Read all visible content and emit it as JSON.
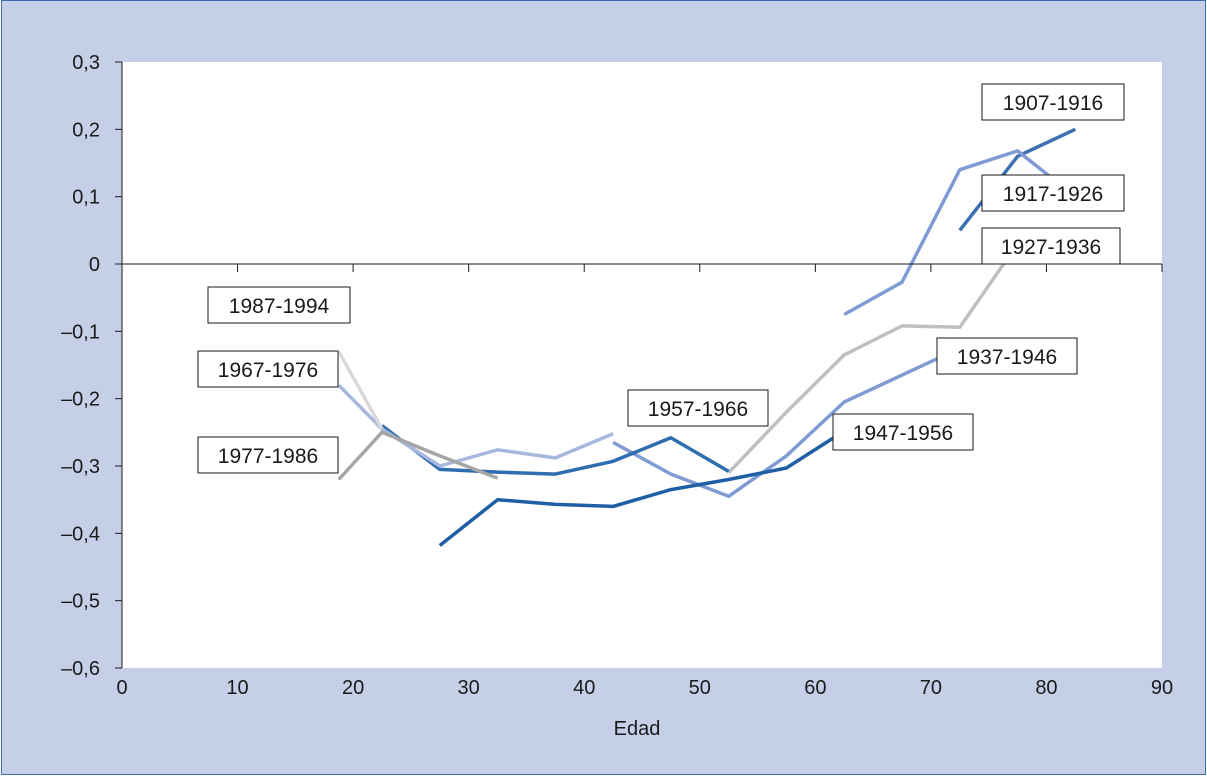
{
  "chart_data": {
    "type": "line",
    "title": "",
    "xlabel": "Edad",
    "ylabel": "",
    "xlim": [
      0,
      90
    ],
    "ylim": [
      -0.6,
      0.3
    ],
    "x_ticks": [
      0,
      10,
      20,
      30,
      40,
      50,
      60,
      70,
      80,
      90
    ],
    "x_tick_labels": [
      "0",
      "10",
      "20",
      "30",
      "40",
      "50",
      "60",
      "70",
      "80",
      "90"
    ],
    "y_ticks": [
      0.3,
      0.2,
      0.1,
      0,
      -0.1,
      -0.2,
      -0.3,
      -0.4,
      -0.5,
      -0.6
    ],
    "y_tick_labels": [
      "0,3",
      "0,2",
      "0,1",
      "0",
      "–0,1",
      "–0,2",
      "–0,3",
      "–0,4",
      "–0,5",
      "–0,6"
    ],
    "grid": false,
    "series": [
      {
        "name": "1907-1916",
        "color": "#3a6fb0",
        "x": [
          72.5,
          77.5,
          82.5
        ],
        "y": [
          0.05,
          0.16,
          0.2
        ]
      },
      {
        "name": "1917-1926",
        "color": "#7f9bd3",
        "x": [
          62.5,
          67.5,
          72.5,
          77.5,
          82.5
        ],
        "y": [
          -0.075,
          -0.027,
          0.14,
          0.168,
          0.1
        ]
      },
      {
        "name": "1927-1936",
        "color": "#bfbfbf",
        "x": [
          52.5,
          57.5,
          62.5,
          67.5,
          72.5,
          77.5,
          82.5
        ],
        "y": [
          -0.31,
          -0.22,
          -0.135,
          -0.092,
          -0.094,
          0.03,
          0.052
        ]
      },
      {
        "name": "1937-1946",
        "color": "#7f9bd3",
        "x": [
          42.5,
          47.5,
          52.5,
          57.5,
          62.5,
          67.5,
          72.5
        ],
        "y": [
          -0.265,
          -0.312,
          -0.345,
          -0.285,
          -0.205,
          -0.165,
          -0.125
        ]
      },
      {
        "name": "1947-1956",
        "color": "#1f5fa6",
        "x": [
          27.5,
          32.5,
          37.5,
          42.5,
          47.5,
          52.5,
          57.5,
          62.5
        ],
        "y": [
          -0.418,
          -0.35,
          -0.357,
          -0.36,
          -0.335,
          -0.32,
          -0.303,
          -0.248
        ]
      },
      {
        "name": "1957-1966",
        "color": "#2e6db0",
        "x": [
          22.5,
          27.5,
          32.5,
          37.5,
          42.5,
          47.5,
          52.5
        ],
        "y": [
          -0.24,
          -0.305,
          -0.309,
          -0.312,
          -0.293,
          -0.258,
          -0.308
        ]
      },
      {
        "name": "1967-1976",
        "color": "#a6b8de",
        "x": [
          18.75,
          22.5,
          27.5,
          32.5,
          37.5,
          42.5
        ],
        "y": [
          -0.18,
          -0.245,
          -0.3,
          -0.276,
          -0.288,
          -0.252
        ]
      },
      {
        "name": "1977-1986",
        "color": "#a6a6a6",
        "x": [
          18.75,
          22.5,
          27.5,
          32.5
        ],
        "y": [
          -0.32,
          -0.25,
          -0.285,
          -0.318
        ]
      },
      {
        "name": "1987-1994",
        "color": "#d9d9d9",
        "x": [
          18.75,
          22.5
        ],
        "y": [
          -0.13,
          -0.245
        ]
      }
    ],
    "labels": [
      {
        "text": "1907-1916"
      },
      {
        "text": "1917-1926"
      },
      {
        "text": "1927-1936"
      },
      {
        "text": "1937-1946"
      },
      {
        "text": "1947-1956"
      },
      {
        "text": "1957-1966"
      },
      {
        "text": "1967-1976"
      },
      {
        "text": "1977-1986"
      },
      {
        "text": "1987-1994"
      }
    ]
  }
}
